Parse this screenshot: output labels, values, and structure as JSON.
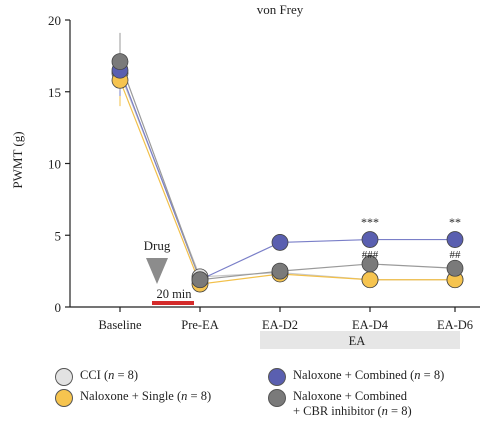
{
  "chart_data": {
    "type": "line",
    "title": "von Frey",
    "ylabel": "PWMT (g)",
    "xlabel": "",
    "categories": [
      "Baseline",
      "Pre-EA",
      "EA-D2",
      "EA-D4",
      "EA-D6"
    ],
    "ylim": [
      0,
      20
    ],
    "yticks": [
      "0",
      "5",
      "10",
      "15",
      "20"
    ],
    "series": [
      {
        "key": "cci",
        "color": "#e2e2e2",
        "line_color": "#c9c9c9",
        "values": [
          16.3,
          2.1,
          2.4,
          1.9,
          1.9
        ],
        "error": [
          2.2,
          0.4,
          0.3,
          0.3,
          0.3
        ]
      },
      {
        "key": "single",
        "color": "#f6c44f",
        "line_color": "#f2c04a",
        "values": [
          15.8,
          1.6,
          2.3,
          1.9,
          1.9
        ],
        "error": [
          1.8,
          0.3,
          0.3,
          0.3,
          0.3
        ]
      },
      {
        "key": "combined",
        "color": "#5a5fb0",
        "line_color": "#7a7fc8",
        "values": [
          16.5,
          1.9,
          4.5,
          4.7,
          4.7
        ],
        "error": [
          1.8,
          0.3,
          0.3,
          0.3,
          0.3
        ]
      },
      {
        "key": "cbr",
        "color": "#7a7a7a",
        "line_color": "#9a9a9a",
        "values": [
          17.1,
          1.9,
          2.5,
          3.0,
          2.7
        ],
        "error": [
          2.0,
          0.3,
          0.3,
          0.3,
          0.3
        ]
      }
    ],
    "annotations": {
      "drug": "Drug",
      "duration": "20 min",
      "ea_band": "EA",
      "stars_d4": "***",
      "stars_d6": "**",
      "hash_d4": "###",
      "hash_d6": "##"
    },
    "legend": {
      "placement": "bottom",
      "items": [
        {
          "line1": "CCI (",
          "n": "n",
          "line1b": " = 8)",
          "line2": "",
          "color": "#e2e2e2"
        },
        {
          "line1": "Naloxone + Combined (",
          "n": "n",
          "line1b": " = 8)",
          "line2": "",
          "color": "#5a5fb0"
        },
        {
          "line1": "Naloxone + Single (",
          "n": "n",
          "line1b": " = 8)",
          "line2": "",
          "color": "#f6c44f"
        },
        {
          "line1": "Naloxone + Combined",
          "n": "",
          "line1b": "",
          "line2": "+ CBR inhibitor (n = 8)",
          "color": "#7a7a7a"
        }
      ]
    }
  }
}
